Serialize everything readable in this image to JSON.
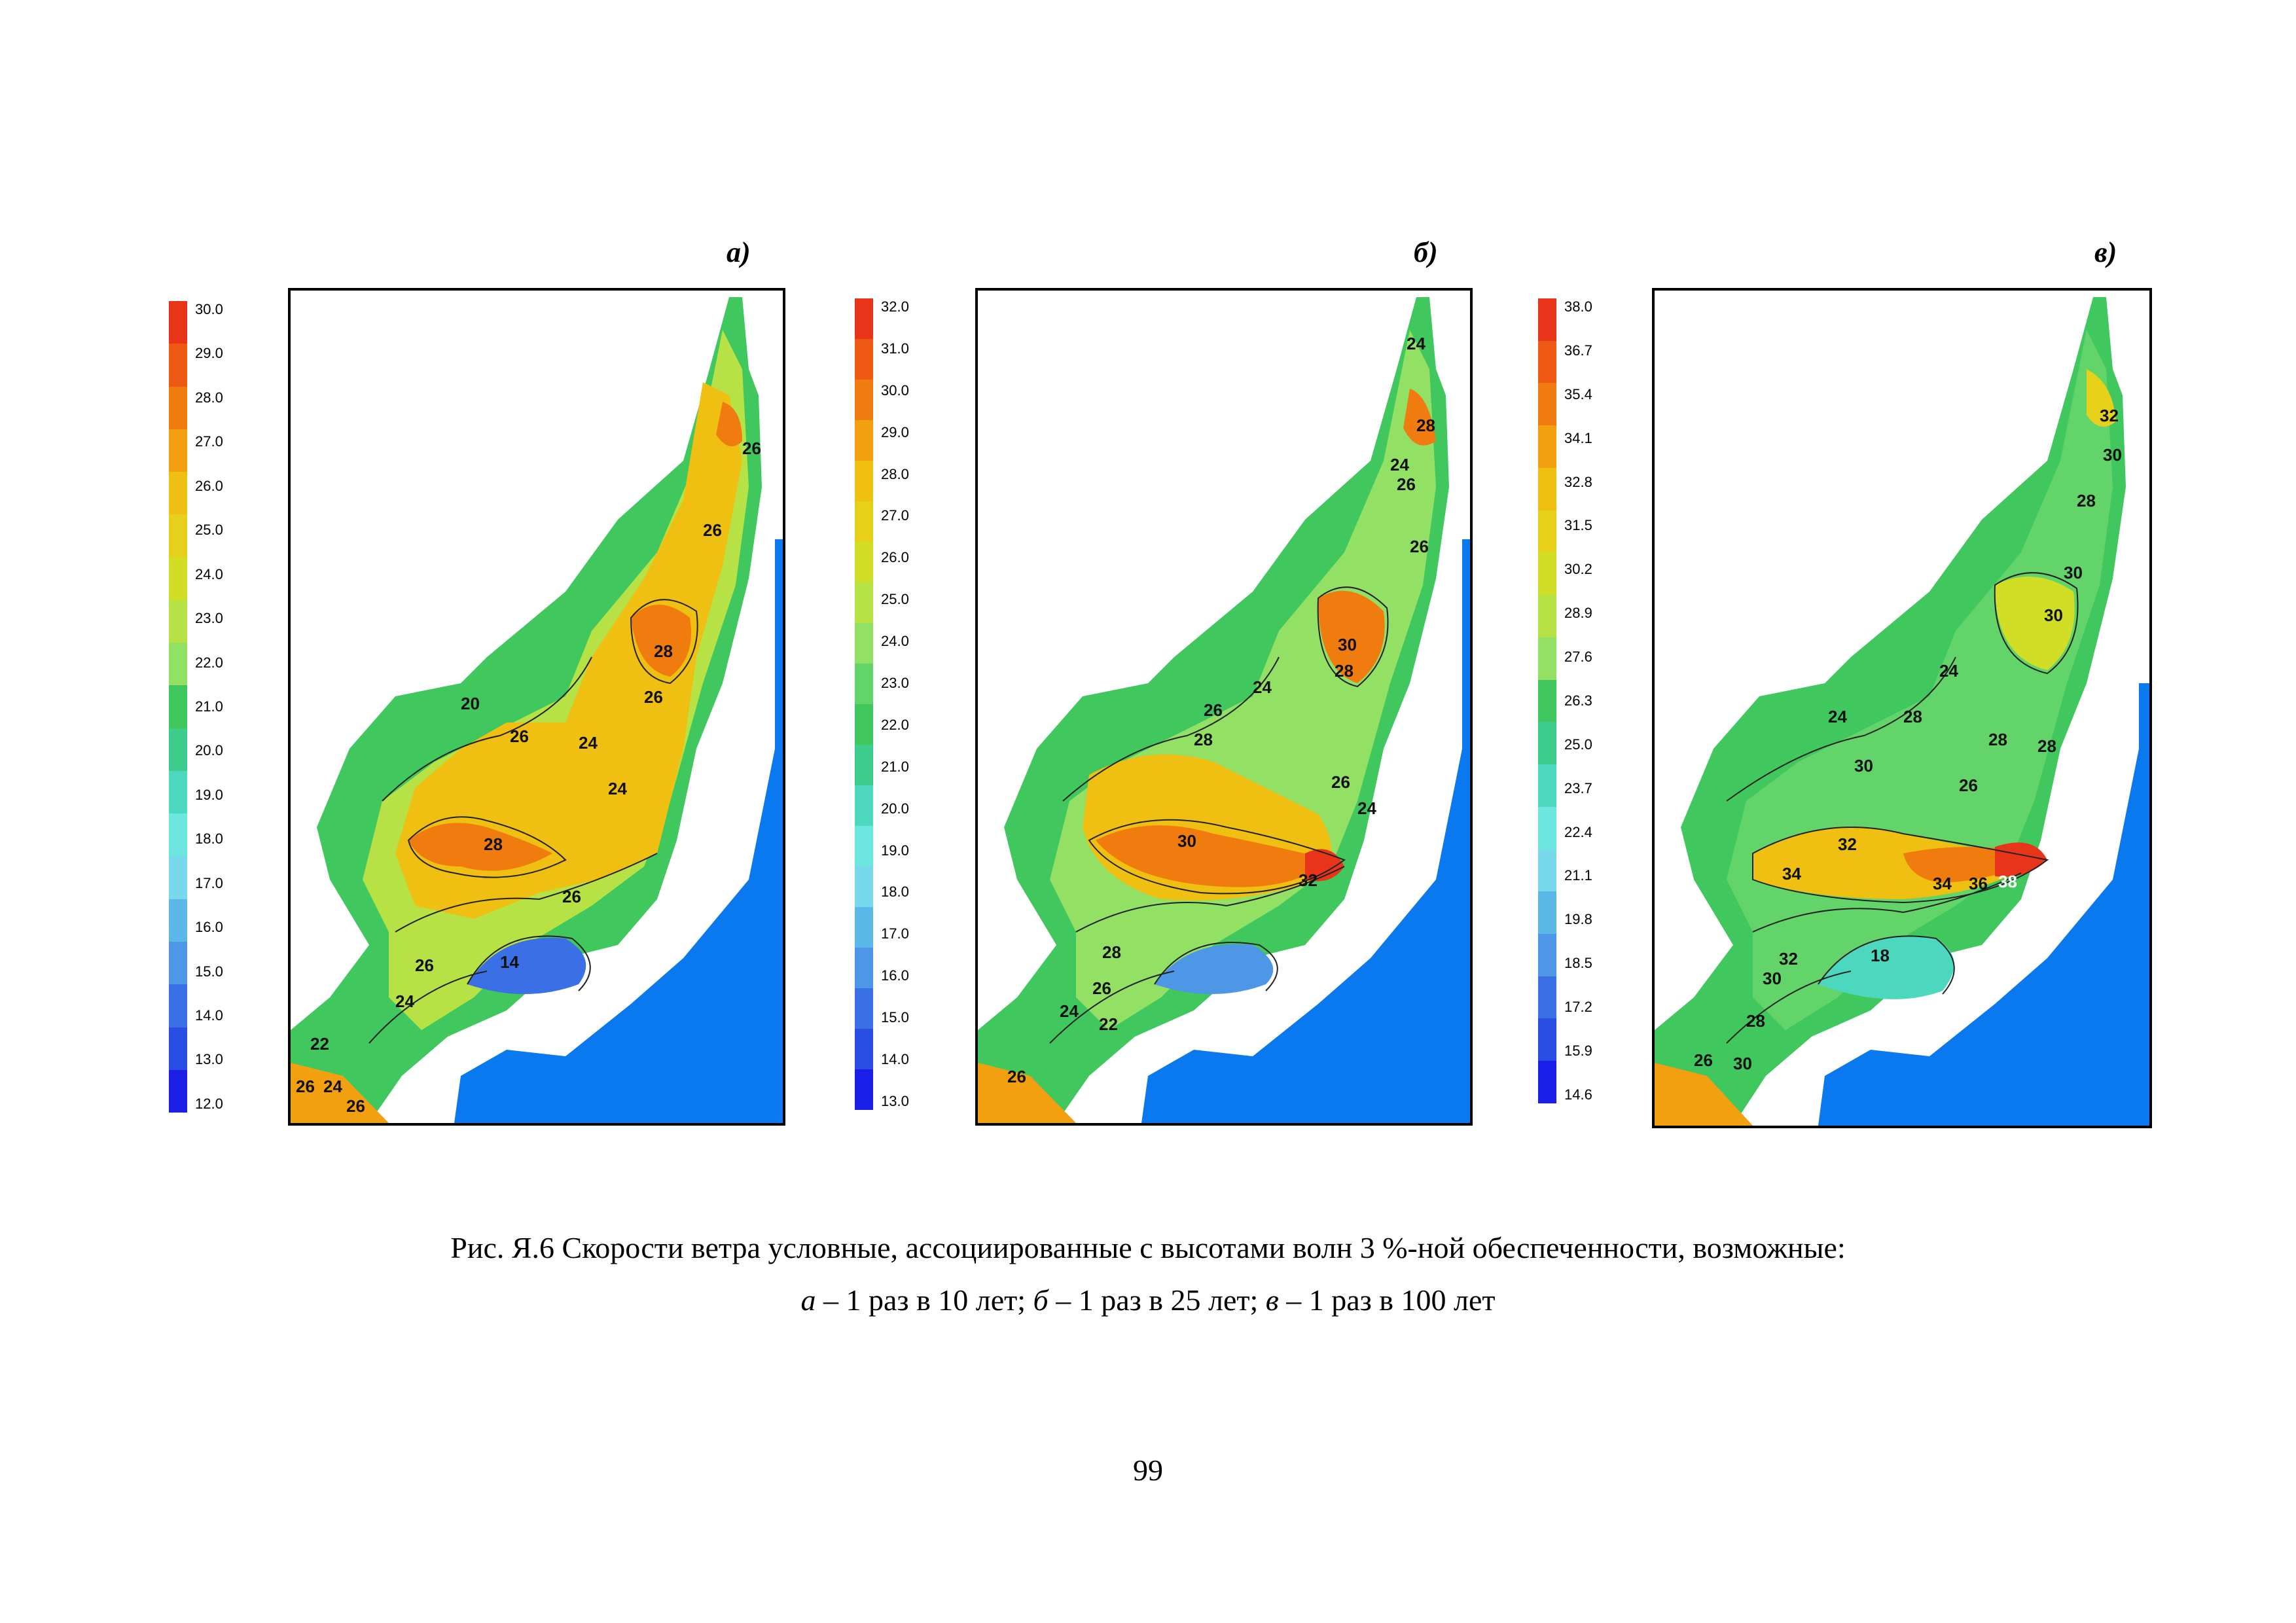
{
  "panels": [
    {
      "label": "а)",
      "legend": [
        "30.0",
        "29.0",
        "28.0",
        "27.0",
        "26.0",
        "25.0",
        "24.0",
        "23.0",
        "22.0",
        "21.0",
        "20.0",
        "19.0",
        "18.0",
        "17.0",
        "16.0",
        "15.0",
        "14.0",
        "13.0",
        "12.0"
      ],
      "contours": [
        "26",
        "26",
        "28",
        "26",
        "20",
        "26",
        "24",
        "24",
        "28",
        "26",
        "26",
        "14",
        "24",
        "22",
        "26",
        "24",
        "26"
      ]
    },
    {
      "label": "б)",
      "legend": [
        "32.0",
        "31.0",
        "30.0",
        "29.0",
        "28.0",
        "27.0",
        "26.0",
        "25.0",
        "24.0",
        "23.0",
        "22.0",
        "21.0",
        "20.0",
        "19.0",
        "18.0",
        "17.0",
        "16.0",
        "15.0",
        "14.0",
        "13.0"
      ],
      "contours": [
        "24",
        "28",
        "24",
        "26",
        "26",
        "30",
        "28",
        "24",
        "26",
        "28",
        "26",
        "24",
        "30",
        "32",
        "28",
        "26",
        "24",
        "22",
        "26"
      ]
    },
    {
      "label": "в)",
      "legend": [
        "38.0",
        "36.7",
        "35.4",
        "34.1",
        "32.8",
        "31.5",
        "30.2",
        "28.9",
        "27.6",
        "26.3",
        "25.0",
        "23.7",
        "22.4",
        "21.1",
        "19.8",
        "18.5",
        "17.2",
        "15.9",
        "14.6"
      ],
      "contours": [
        "32",
        "30",
        "28",
        "30",
        "30",
        "24",
        "24",
        "28",
        "28",
        "28",
        "30",
        "26",
        "32",
        "34",
        "34",
        "36",
        "38",
        "18",
        "32",
        "30",
        "28",
        "26",
        "30"
      ]
    }
  ],
  "colors": {
    "sea": "#0a78ee",
    "scale": [
      "#e8351a",
      "#ee5a14",
      "#f07c10",
      "#f2a010",
      "#efbf12",
      "#e6d01a",
      "#d2de26",
      "#b6e246",
      "#92e064",
      "#62d46a",
      "#40c85e",
      "#3ccc8c",
      "#4cd8be",
      "#6ee6e0",
      "#78d8ec",
      "#5cb8e8",
      "#4e96e6",
      "#3a6fe6",
      "#2a4de4",
      "#1a1ee6"
    ]
  },
  "caption": {
    "line1": "Рис. Я.6 Скорости ветра условные, ассоциированные с высотами волн 3 %-ной обеспеченности, возможные:",
    "line2_a": "а",
    "line2_a_text": " – 1 раз в 10 лет; ",
    "line2_b": "б",
    "line2_b_text": " – 1 раз в 25 лет; ",
    "line2_c": "в",
    "line2_c_text": " – 1 раз в 100 лет"
  },
  "page_number": "99"
}
